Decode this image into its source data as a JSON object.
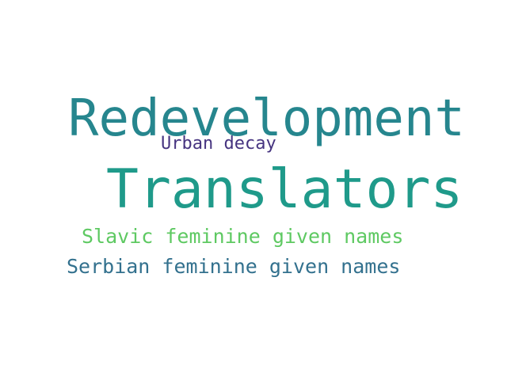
{
  "word_cloud": {
    "words": [
      {
        "text": "Redevelopment",
        "color": "#26868e"
      },
      {
        "text": "Urban decay",
        "color": "#463480"
      },
      {
        "text": "Translators",
        "color": "#1f9a8a"
      },
      {
        "text": "Slavic feminine given names",
        "color": "#5ec962"
      },
      {
        "text": "Serbian feminine given names",
        "color": "#33718e"
      }
    ]
  }
}
